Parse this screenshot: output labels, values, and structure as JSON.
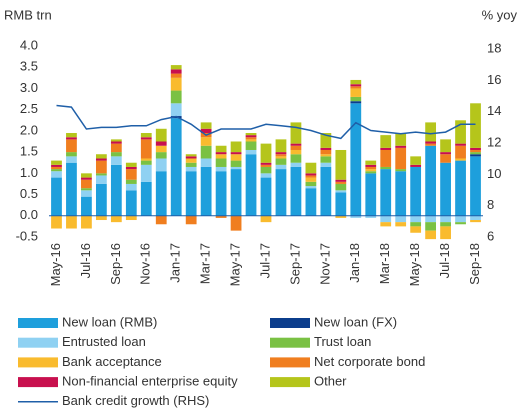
{
  "chart_data": {
    "type": "bar",
    "stacked": true,
    "y_label": "RMB trn",
    "y2_label": "% yoy",
    "categories": [
      "May-16",
      null,
      "Jul-16",
      null,
      "Sep-16",
      null,
      "Nov-16",
      null,
      "Jan-17",
      null,
      "Mar-17",
      null,
      "May-17",
      null,
      "Jul-17",
      null,
      "Sep-17",
      null,
      "Nov-17",
      null,
      "Jan-18",
      null,
      "Mar-18",
      null,
      "May-18",
      null,
      "Jul-18",
      null,
      "Sep-18"
    ],
    "ylim": [
      -0.5,
      4.0
    ],
    "yticks": [
      {
        "value": -0.5,
        "label": "-0.5"
      },
      {
        "value": 0,
        "label": "0.0"
      },
      {
        "value": 0.5,
        "label": "0.5"
      },
      {
        "value": 1,
        "label": "1.0"
      },
      {
        "value": 1.5,
        "label": "1.5"
      },
      {
        "value": 2,
        "label": "2.0"
      },
      {
        "value": 2.5,
        "label": "2.5"
      },
      {
        "value": 3,
        "label": "3.0"
      },
      {
        "value": 3.5,
        "label": "3.5"
      },
      {
        "value": 4,
        "label": "4.0"
      }
    ],
    "y2lim": [
      6,
      18.2
    ],
    "y2ticks": [
      6,
      8,
      10,
      12,
      14,
      16,
      18
    ],
    "series": [
      {
        "name": "New loan (RMB)",
        "color": "#1e9fdc",
        "values": [
          0.9,
          1.25,
          0.45,
          0.75,
          1.2,
          0.6,
          0.8,
          1.05,
          2.3,
          1.05,
          1.15,
          1.05,
          1.1,
          1.45,
          0.9,
          1.1,
          1.15,
          0.65,
          1.15,
          0.55,
          2.65,
          1.0,
          1.1,
          1.05,
          1.15,
          1.65,
          1.25,
          1.3,
          1.4
        ]
      },
      {
        "name": "New loan (FX)",
        "color": "#0b3d8c",
        "values": [
          0.0,
          0.0,
          0.0,
          0.0,
          0.0,
          0.0,
          0.0,
          0.0,
          0.05,
          0.0,
          0.0,
          0.0,
          0.0,
          0.0,
          0.0,
          0.0,
          0.0,
          0.0,
          0.0,
          0.0,
          0.05,
          0.0,
          0.0,
          0.0,
          0.0,
          0.0,
          0.0,
          0.0,
          0.05
        ]
      },
      {
        "name": "Entrusted loan",
        "color": "#8fd1f2",
        "values": [
          0.15,
          0.15,
          0.15,
          0.2,
          0.2,
          0.15,
          0.4,
          0.3,
          0.3,
          0.1,
          0.2,
          0.1,
          0.05,
          0.1,
          0.1,
          0.1,
          0.1,
          0.05,
          0.1,
          0.05,
          -0.05,
          -0.05,
          -0.15,
          -0.15,
          -0.15,
          -0.15,
          -0.15,
          -0.15,
          -0.1
        ]
      },
      {
        "name": "Trust loan",
        "color": "#7ac143",
        "values": [
          0.05,
          0.1,
          0.05,
          0.05,
          0.1,
          0.1,
          0.1,
          0.15,
          0.3,
          0.1,
          0.3,
          0.2,
          0.15,
          0.2,
          0.15,
          0.15,
          0.2,
          0.1,
          0.15,
          0.15,
          0.1,
          0.05,
          0.05,
          0.05,
          -0.1,
          -0.2,
          -0.1,
          -0.05,
          0.05
        ]
      },
      {
        "name": "Bank acceptance",
        "color": "#f9bb2e",
        "values": [
          -0.3,
          -0.3,
          -0.3,
          -0.1,
          -0.15,
          -0.1,
          0.05,
          0.15,
          0.3,
          0.1,
          0.2,
          0.1,
          0.15,
          0.05,
          -0.15,
          0.05,
          0.1,
          0.1,
          0.05,
          -0.05,
          0.2,
          0.05,
          -0.1,
          -0.1,
          -0.15,
          -0.2,
          -0.3,
          0.05,
          -0.05
        ]
      },
      {
        "name": "Net corporate bond",
        "color": "#f07e1f",
        "values": [
          0.05,
          0.3,
          0.2,
          0.3,
          0.2,
          0.25,
          0.45,
          -0.2,
          0.1,
          -0.2,
          0.1,
          -0.05,
          -0.35,
          0.05,
          0.05,
          0.05,
          0.1,
          0.05,
          0.1,
          0.05,
          0.05,
          0.05,
          0.4,
          0.5,
          0.0,
          0.05,
          0.2,
          0.3,
          0.05
        ]
      },
      {
        "name": "Non-financial enterprise equity",
        "color": "#c8104e",
        "values": [
          0.05,
          0.05,
          0.05,
          0.05,
          0.05,
          0.05,
          0.05,
          0.1,
          0.1,
          0.05,
          0.1,
          0.05,
          0.05,
          0.05,
          0.05,
          0.05,
          0.05,
          0.05,
          0.05,
          0.05,
          0.05,
          0.05,
          0.05,
          0.05,
          0.05,
          0.05,
          0.05,
          0.05,
          0.05
        ]
      },
      {
        "name": "Other",
        "color": "#b5c51b",
        "values": [
          0.1,
          0.1,
          0.1,
          0.1,
          0.05,
          0.1,
          0.1,
          0.3,
          0.1,
          0.05,
          0.15,
          0.15,
          0.25,
          0.05,
          0.45,
          0.3,
          0.5,
          0.25,
          0.35,
          0.7,
          0.1,
          0.1,
          0.3,
          0.3,
          0.2,
          0.45,
          0.3,
          0.55,
          1.05
        ]
      },
      {
        "name": "Bank credit growth (RHS)",
        "color": "#1f5fa8",
        "type": "line",
        "axis": "y2",
        "values": [
          14.4,
          14.3,
          12.9,
          13.0,
          13.0,
          13.1,
          13.1,
          13.5,
          13.7,
          13.2,
          12.5,
          12.9,
          12.9,
          12.9,
          13.2,
          13.1,
          13.0,
          12.8,
          12.5,
          12.3,
          13.3,
          12.8,
          12.7,
          12.6,
          12.7,
          12.6,
          12.7,
          13.2,
          13.2
        ]
      }
    ]
  }
}
